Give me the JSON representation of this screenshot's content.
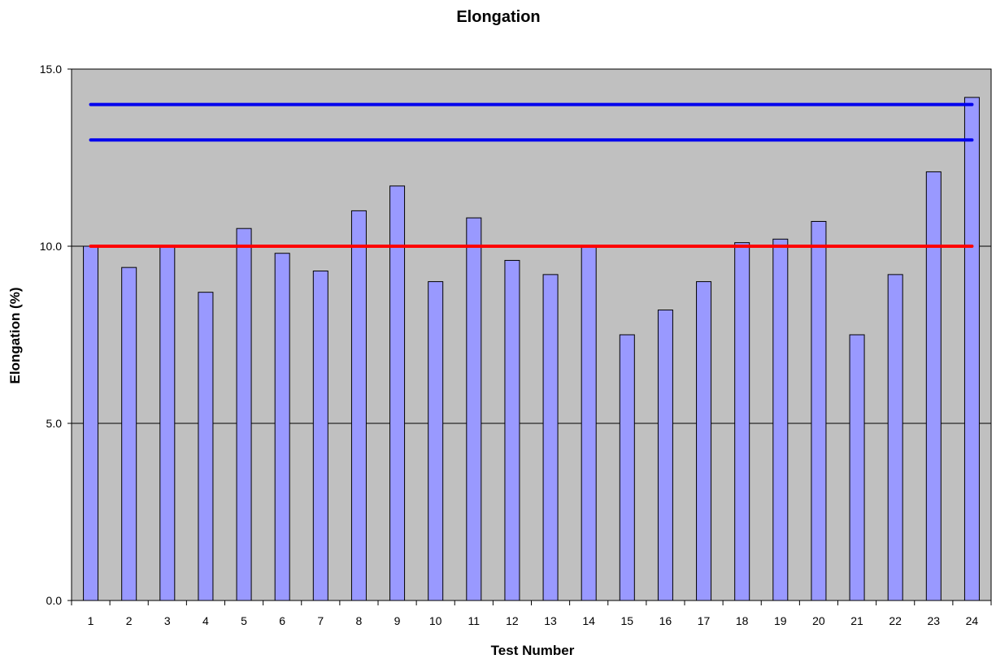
{
  "chart_data": {
    "type": "bar",
    "title": "Elongation",
    "xlabel": "Test Number",
    "ylabel": "Elongation (%)",
    "categories": [
      "1",
      "2",
      "3",
      "4",
      "5",
      "6",
      "7",
      "8",
      "9",
      "10",
      "11",
      "12",
      "13",
      "14",
      "15",
      "16",
      "17",
      "18",
      "19",
      "20",
      "21",
      "22",
      "23",
      "24"
    ],
    "values": [
      10.0,
      9.4,
      10.0,
      8.7,
      10.5,
      9.8,
      9.3,
      11.0,
      11.7,
      9.0,
      10.8,
      9.6,
      9.2,
      10.0,
      7.5,
      8.2,
      9.0,
      10.1,
      10.2,
      10.7,
      7.5,
      9.2,
      12.1,
      14.2
    ],
    "ylim": [
      0,
      15
    ],
    "yticks": [
      0,
      5,
      10,
      15
    ],
    "ytick_labels": [
      "0.0",
      "5.0",
      "10.0",
      "15.0"
    ],
    "grid": true,
    "reference_lines": [
      {
        "value": 14.0,
        "color": "#0000ee"
      },
      {
        "value": 13.0,
        "color": "#0000ee"
      },
      {
        "value": 10.0,
        "color": "#ff0000"
      }
    ],
    "colors": {
      "bar_fill": "#9999ff",
      "bar_stroke": "#000000",
      "plot_background": "#c0c0c0",
      "gridline": "#000000"
    }
  }
}
